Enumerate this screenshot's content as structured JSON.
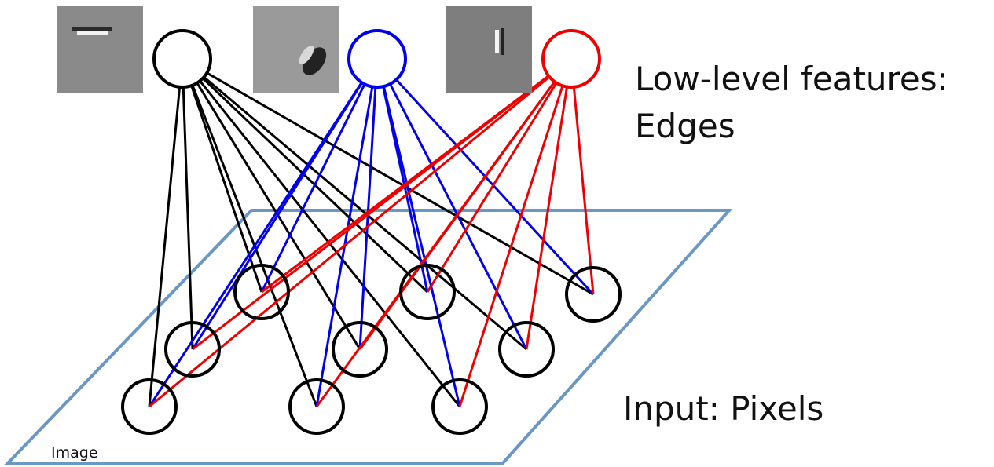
{
  "labels": {
    "features": [
      "Low-level features:",
      "Edges"
    ],
    "input": "Input: Pixels",
    "image": "Image"
  }
}
